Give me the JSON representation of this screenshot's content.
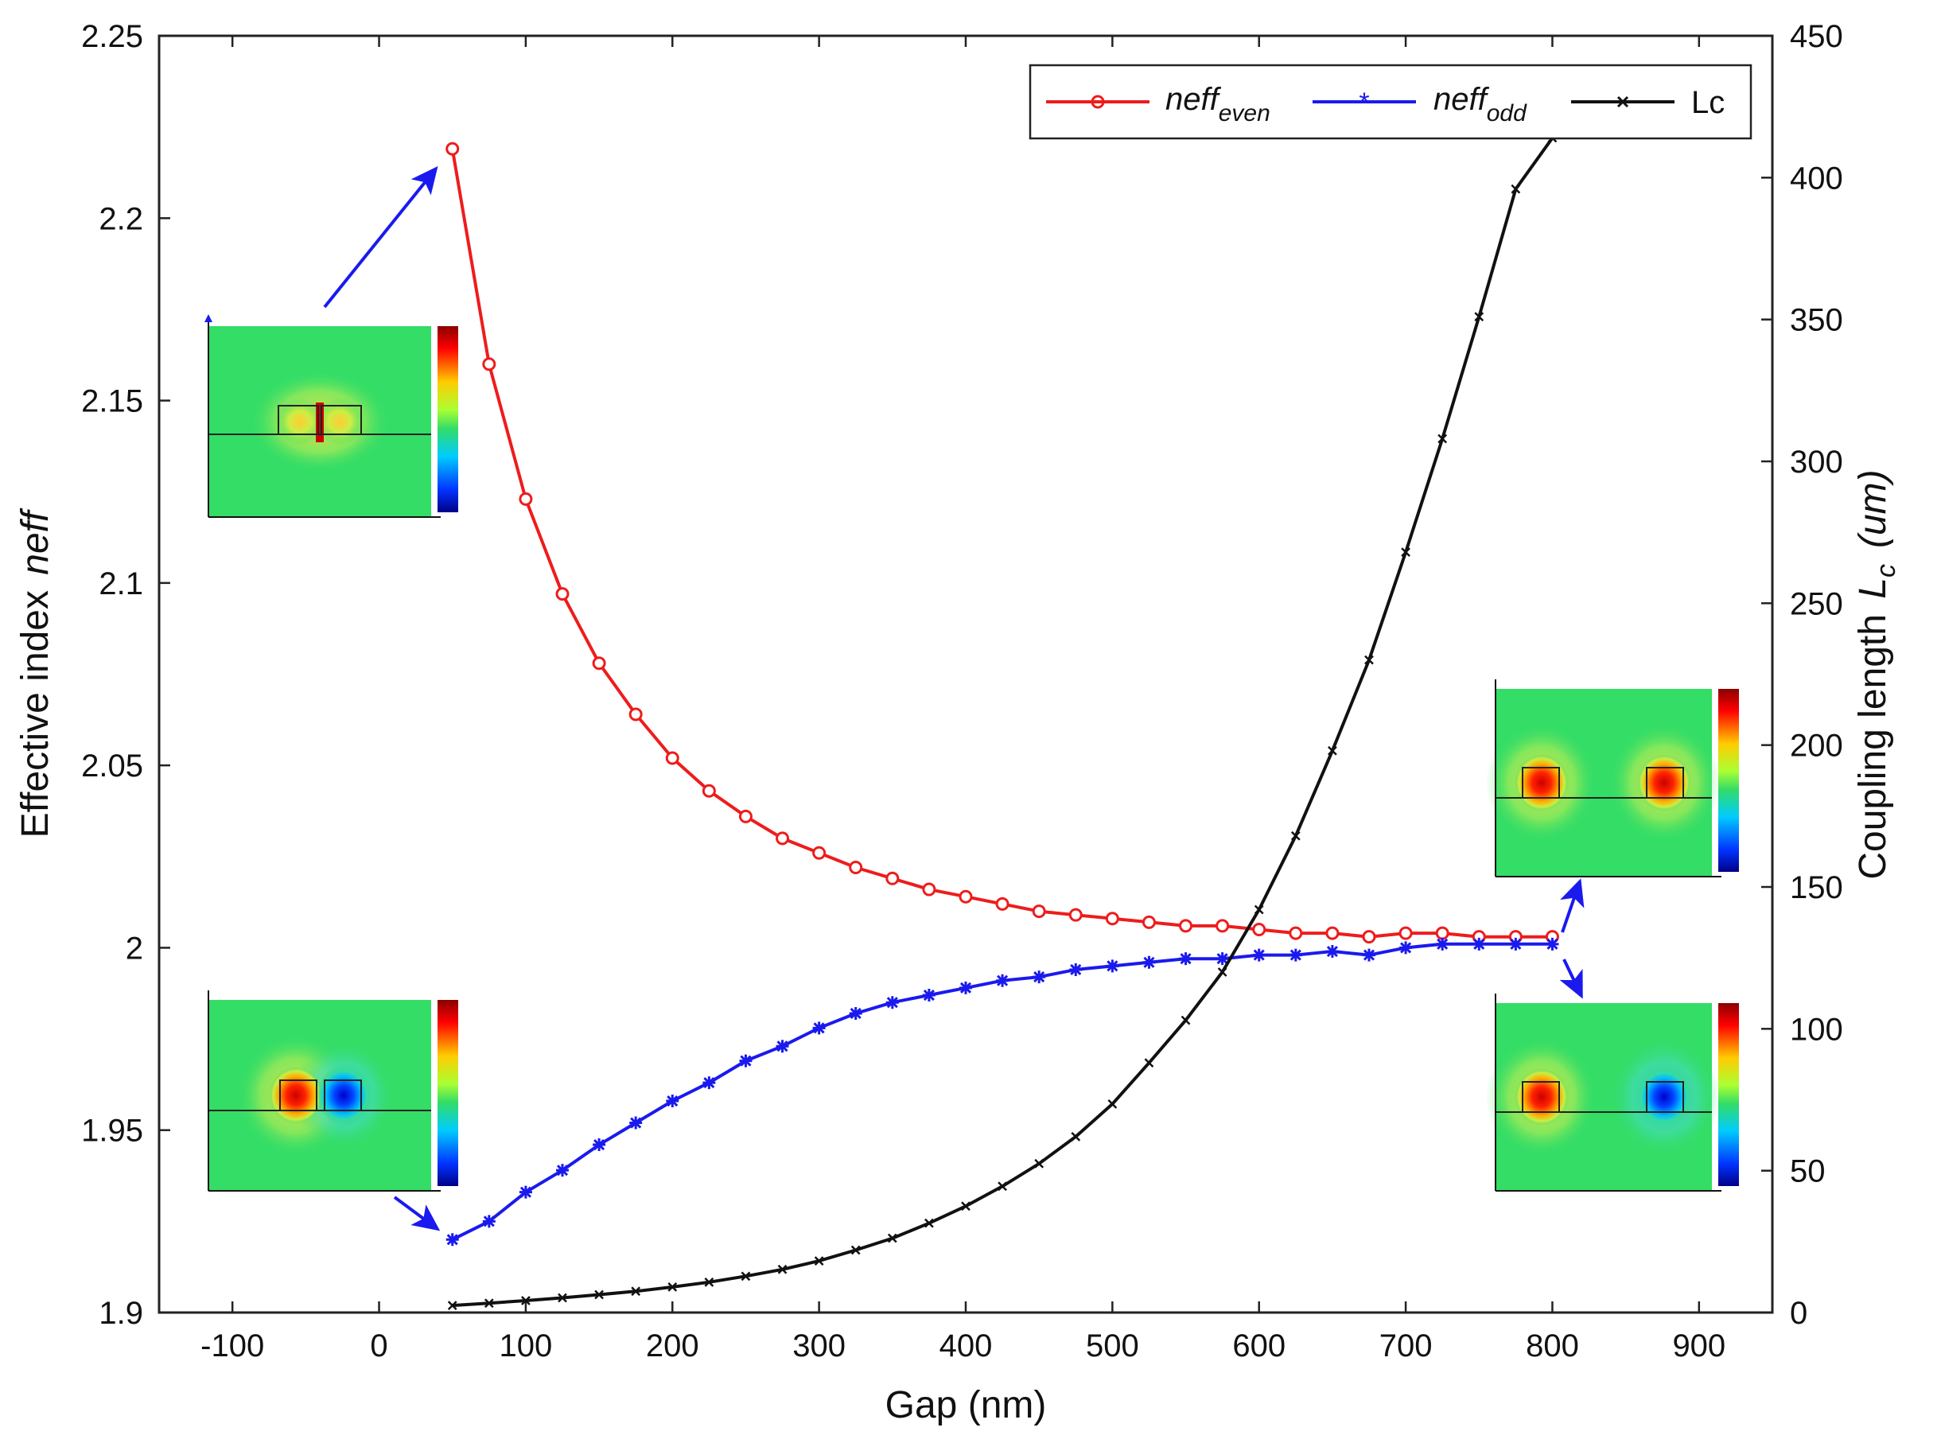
{
  "chart_data": {
    "type": "line",
    "xlabel": "Gap (nm)",
    "ylabel_left": {
      "text": "Effective index",
      "italic_part": "neff"
    },
    "ylabel_right": {
      "text": "Coupling length",
      "symbol": "L",
      "subscript": "c",
      "unit": "(um)"
    },
    "xlim": [
      -150,
      950
    ],
    "ylim_left": [
      1.9,
      2.25
    ],
    "ylim_right": [
      0,
      450
    ],
    "xticks": [
      -100,
      0,
      100,
      200,
      300,
      400,
      500,
      600,
      700,
      800,
      900
    ],
    "xtick_labels": [
      "-100",
      "0",
      "100",
      "200",
      "300",
      "400",
      "500",
      "600",
      "700",
      "800",
      "900"
    ],
    "yticks_left": [
      1.9,
      1.95,
      2.0,
      2.05,
      2.1,
      2.15,
      2.2,
      2.25
    ],
    "ytick_labels_left": [
      "1.9",
      "1.95",
      "2",
      "2.05",
      "2.1",
      "2.15",
      "2.2",
      "2.25"
    ],
    "yticks_right": [
      0,
      50,
      100,
      150,
      200,
      250,
      300,
      350,
      400,
      450
    ],
    "ytick_labels_right": [
      "0",
      "50",
      "100",
      "150",
      "200",
      "250",
      "300",
      "350",
      "400",
      "450"
    ],
    "legend_position": "top-right",
    "x": [
      50,
      75,
      100,
      125,
      150,
      175,
      200,
      225,
      250,
      275,
      300,
      325,
      350,
      375,
      400,
      425,
      450,
      475,
      500,
      525,
      550,
      575,
      600,
      625,
      650,
      675,
      700,
      725,
      750,
      775,
      800
    ],
    "series": [
      {
        "name": "neff",
        "name_sub": "even",
        "axis": "left",
        "color": "#ee1c1c",
        "marker": "circle",
        "values": [
          2.219,
          2.16,
          2.123,
          2.097,
          2.078,
          2.064,
          2.052,
          2.043,
          2.036,
          2.03,
          2.026,
          2.022,
          2.019,
          2.016,
          2.014,
          2.012,
          2.01,
          2.009,
          2.008,
          2.007,
          2.006,
          2.006,
          2.005,
          2.004,
          2.004,
          2.003,
          2.004,
          2.004,
          2.003,
          2.003,
          2.003
        ]
      },
      {
        "name": "neff",
        "name_sub": "odd",
        "axis": "left",
        "color": "#1a1aee",
        "marker": "star",
        "values": [
          1.92,
          1.925,
          1.933,
          1.939,
          1.946,
          1.952,
          1.958,
          1.963,
          1.969,
          1.973,
          1.978,
          1.982,
          1.985,
          1.987,
          1.989,
          1.991,
          1.992,
          1.994,
          1.995,
          1.996,
          1.997,
          1.997,
          1.998,
          1.998,
          1.999,
          1.998,
          2.0,
          2.001,
          2.001,
          2.001,
          2.001
        ]
      },
      {
        "name": "Lc",
        "name_sub": "",
        "axis": "right",
        "color": "#111111",
        "marker": "x",
        "values": [
          2.5,
          3.3,
          4.2,
          5.2,
          6.3,
          7.5,
          9.0,
          10.7,
          12.8,
          15.2,
          18.2,
          22.0,
          26.2,
          31.5,
          37.5,
          44.5,
          52.5,
          62,
          73.5,
          88,
          103,
          120,
          142,
          168,
          198,
          230,
          268,
          308,
          351,
          396,
          414
        ]
      }
    ],
    "insets": [
      {
        "name": "mode-profile-top-left",
        "pointer_x": 50,
        "pointer_series": "neff-even"
      },
      {
        "name": "mode-profile-bottom-left",
        "pointer_x": 50,
        "pointer_series": "neff-odd"
      },
      {
        "name": "mode-profile-right-even",
        "pointer_x": 800,
        "pointer_series": "neff-even"
      },
      {
        "name": "mode-profile-right-odd",
        "pointer_x": 800,
        "pointer_series": "neff-odd"
      }
    ],
    "colors": {
      "axes": "#222222",
      "arrow": "#1a1aee",
      "field_bg": "#33dd66"
    }
  }
}
